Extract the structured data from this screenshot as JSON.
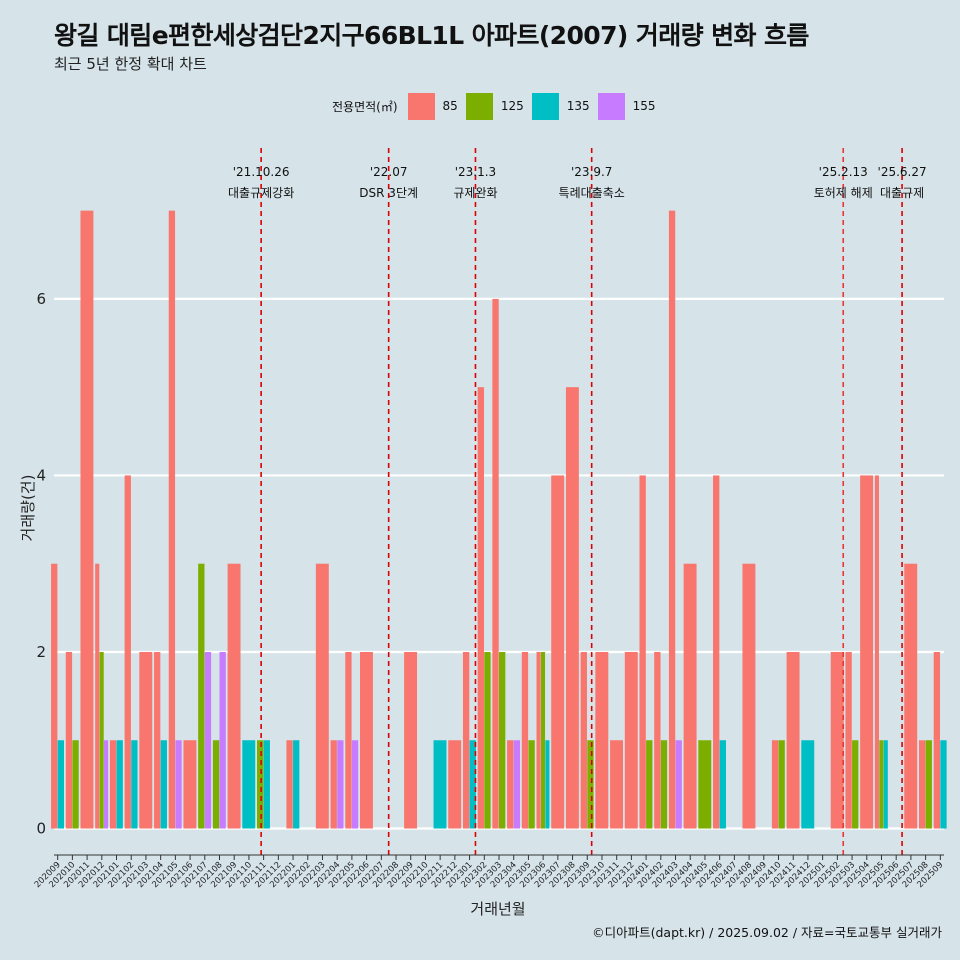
{
  "title": "왕길 대림e편한세상검단2지구66BL1L 아파트(2007) 거래량 변화 흐름",
  "subtitle": "최근 5년 한정 확대 차트",
  "footer": "©디아파트(dapt.kr) / 2025.09.02 / 자료=국토교통부 실거래가",
  "legend": {
    "title": "전용면적(㎡)",
    "items": [
      {
        "label": "85",
        "color": "#f8766d"
      },
      {
        "label": "125",
        "color": "#7cae00"
      },
      {
        "label": "135",
        "color": "#00bfc4"
      },
      {
        "label": "155",
        "color": "#c77cff"
      }
    ]
  },
  "chart_data": {
    "type": "bar",
    "xlabel": "거래년월",
    "ylabel": "거래량(건)",
    "ylim": [
      -0.3,
      7.8
    ],
    "yticks": [
      0,
      2,
      4,
      6
    ],
    "grid": true,
    "legend_position": "top",
    "categories": [
      "202009",
      "202010",
      "202011",
      "202012",
      "202101",
      "202102",
      "202103",
      "202104",
      "202105",
      "202106",
      "202107",
      "202108",
      "202109",
      "202110",
      "202111",
      "202112",
      "202201",
      "202202",
      "202203",
      "202204",
      "202205",
      "202206",
      "202207",
      "202208",
      "202209",
      "202210",
      "202211",
      "202212",
      "202301",
      "202302",
      "202303",
      "202304",
      "202305",
      "202306",
      "202307",
      "202308",
      "202309",
      "202310",
      "202311",
      "202312",
      "202401",
      "202402",
      "202403",
      "202404",
      "202405",
      "202406",
      "202407",
      "202408",
      "202409",
      "202410",
      "202411",
      "202412",
      "202501",
      "202502",
      "202503",
      "202504",
      "202505",
      "202506",
      "202507",
      "202508",
      "202509"
    ],
    "series": [
      {
        "name": "85",
        "color": "#f8766d",
        "values": [
          3,
          2,
          7,
          3,
          1,
          4,
          2,
          2,
          7,
          1,
          0,
          0,
          3,
          0,
          0,
          0,
          1,
          0,
          3,
          1,
          2,
          2,
          0,
          0,
          2,
          0,
          0,
          1,
          2,
          5,
          6,
          1,
          2,
          2,
          4,
          5,
          2,
          2,
          1,
          2,
          4,
          2,
          7,
          3,
          0,
          4,
          0,
          3,
          0,
          1,
          2,
          0,
          0,
          2,
          2,
          4,
          4,
          0,
          3,
          1,
          2
        ]
      },
      {
        "name": "125",
        "color": "#7cae00",
        "values": [
          0,
          1,
          0,
          2,
          0,
          0,
          0,
          0,
          0,
          0,
          3,
          1,
          0,
          0,
          1,
          0,
          0,
          0,
          0,
          0,
          0,
          0,
          0,
          0,
          0,
          0,
          0,
          0,
          0,
          2,
          2,
          0,
          1,
          2,
          0,
          0,
          1,
          0,
          0,
          0,
          1,
          1,
          0,
          0,
          1,
          0,
          0,
          0,
          0,
          1,
          0,
          0,
          0,
          0,
          1,
          0,
          1,
          0,
          0,
          1,
          0
        ]
      },
      {
        "name": "135",
        "color": "#00bfc4",
        "values": [
          1,
          0,
          0,
          0,
          1,
          1,
          0,
          1,
          0,
          0,
          0,
          0,
          0,
          1,
          1,
          0,
          1,
          0,
          0,
          0,
          0,
          0,
          0,
          0,
          0,
          0,
          1,
          0,
          1,
          0,
          0,
          0,
          0,
          1,
          0,
          0,
          0,
          0,
          0,
          0,
          0,
          0,
          0,
          0,
          0,
          1,
          0,
          0,
          0,
          0,
          0,
          1,
          0,
          0,
          0,
          0,
          1,
          0,
          0,
          0,
          1
        ]
      },
      {
        "name": "155",
        "color": "#c77cff",
        "values": [
          0,
          0,
          0,
          1,
          0,
          0,
          0,
          0,
          1,
          0,
          2,
          2,
          0,
          0,
          0,
          0,
          0,
          0,
          0,
          1,
          1,
          0,
          0,
          0,
          0,
          0,
          0,
          0,
          0,
          0,
          0,
          1,
          0,
          0,
          0,
          0,
          0,
          0,
          0,
          0,
          0,
          0,
          1,
          0,
          0,
          0,
          0,
          0,
          0,
          0,
          0,
          0,
          0,
          0,
          0,
          0,
          0,
          0,
          0,
          0,
          0
        ]
      }
    ],
    "events": [
      {
        "date": "'21.10.26",
        "label": "대출규제강화",
        "index": 13.83,
        "line": "#dd0000"
      },
      {
        "date": "'22.07",
        "label": "DSR 3단계",
        "index": 22.5,
        "line": "#dd0000"
      },
      {
        "date": "'23.1.3",
        "label": "규제완화",
        "index": 28.4,
        "line": "#dd0000"
      },
      {
        "date": "'23.9.7",
        "label": "특례대출축소",
        "index": 36.3,
        "line": "#dd0000"
      },
      {
        "date": "'25.2.13",
        "label": "토허제 해제",
        "index": 53.4,
        "line": "#ee3333"
      },
      {
        "date": "'25.6.27",
        "label": "대출규제",
        "index": 57.4,
        "line": "#dd0000"
      }
    ]
  }
}
